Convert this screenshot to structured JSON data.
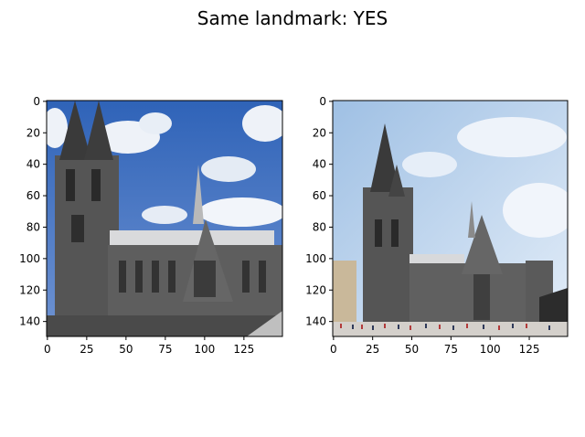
{
  "figure": {
    "title": "Same landmark: YES"
  },
  "chart_data": [
    {
      "type": "image",
      "panel": "left",
      "xticks": [
        0,
        25,
        50,
        75,
        100,
        125
      ],
      "yticks": [
        0,
        20,
        40,
        60,
        80,
        100,
        120,
        140
      ],
      "xlim": [
        -0.5,
        149.5
      ],
      "ylim": [
        149.5,
        -0.5
      ],
      "colors": {
        "sky": "#3f6fbf",
        "cloud": "#eef2f8",
        "stone": "#5b5b5b",
        "dark": "#2e2e2e"
      }
    },
    {
      "type": "image",
      "panel": "right",
      "xticks": [
        0,
        25,
        50,
        75,
        100,
        125
      ],
      "yticks": [
        0,
        20,
        40,
        60,
        80,
        100,
        120,
        140
      ],
      "xlim": [
        -0.5,
        149.5
      ],
      "ylim": [
        149.5,
        -0.5
      ],
      "colors": {
        "sky": "#b9d1ea",
        "cloud": "#ecf2f9",
        "stone": "#5e5e5e",
        "dark": "#333333"
      }
    }
  ]
}
